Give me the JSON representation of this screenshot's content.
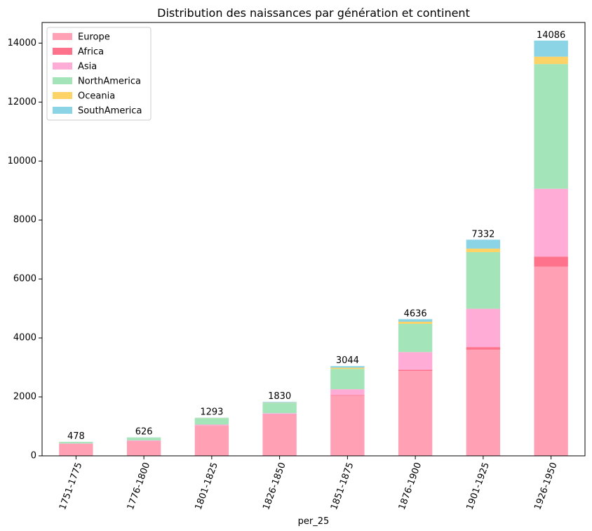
{
  "chart_data": {
    "type": "bar",
    "stacked": true,
    "title": "Distribution des naissances par génération et continent",
    "xlabel": "per_25",
    "ylabel": "",
    "ylim": [
      0,
      14700
    ],
    "yticks": [
      0,
      2000,
      4000,
      6000,
      8000,
      10000,
      12000,
      14000
    ],
    "categories": [
      "1751-1775",
      "1776-1800",
      "1801-1825",
      "1826-1850",
      "1851-1875",
      "1876-1900",
      "1901-1925",
      "1926-1950"
    ],
    "totals": [
      478,
      626,
      1293,
      1830,
      3044,
      4636,
      7332,
      14086
    ],
    "legend_position": "top-left",
    "grid": false,
    "series": [
      {
        "name": "Europe",
        "color": "#ffa0b4",
        "values": [
          400,
          500,
          1010,
          1380,
          2040,
          2880,
          3600,
          6420
        ]
      },
      {
        "name": "Africa",
        "color": "#ff728c",
        "values": [
          5,
          5,
          10,
          15,
          20,
          40,
          90,
          340
        ]
      },
      {
        "name": "Asia",
        "color": "#ffadd6",
        "values": [
          15,
          20,
          40,
          50,
          200,
          600,
          1300,
          2300
        ]
      },
      {
        "name": "NorthAmerica",
        "color": "#a3e4b8",
        "values": [
          50,
          90,
          220,
          350,
          690,
          960,
          1920,
          4230
        ]
      },
      {
        "name": "Oceania",
        "color": "#fdd267",
        "values": [
          3,
          3,
          5,
          10,
          40,
          70,
          120,
          250
        ]
      },
      {
        "name": "SouthAmerica",
        "color": "#8ad4e6",
        "values": [
          5,
          8,
          8,
          25,
          54,
          86,
          302,
          546
        ]
      }
    ]
  }
}
